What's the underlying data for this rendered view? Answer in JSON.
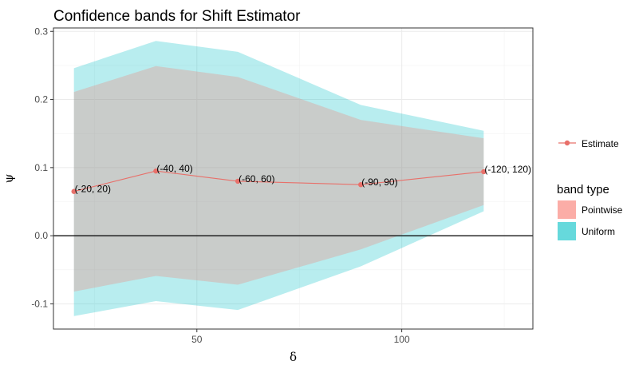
{
  "chart_data": {
    "type": "line",
    "title": "Confidence bands for Shift Estimator",
    "xlabel": "δ",
    "ylabel": "ψ",
    "xlim": [
      15,
      132
    ],
    "ylim": [
      -0.137,
      0.305
    ],
    "x_ticks": [
      50,
      100
    ],
    "y_ticks": [
      -0.1,
      0.0,
      0.1,
      0.2,
      0.3
    ],
    "y_tick_labels": [
      "-0.1",
      "0.0",
      "0.1",
      "0.2",
      "0.3"
    ],
    "grid": true,
    "reference_line_y": 0.0,
    "estimate": {
      "name": "Estimate",
      "color": "#e8706a",
      "x": [
        20,
        40,
        60,
        90,
        120
      ],
      "y": [
        0.065,
        0.095,
        0.08,
        0.075,
        0.094
      ],
      "labels": [
        "(-20, 20)",
        "(-40, 40)",
        "(-60, 60)",
        "(-90, 90)",
        "(-120, 120)"
      ]
    },
    "bands": [
      {
        "name": "Uniform",
        "color": "#00bfc4",
        "x": [
          20,
          40,
          60,
          90,
          120
        ],
        "lower": [
          -0.118,
          -0.096,
          -0.109,
          -0.045,
          0.036
        ],
        "upper": [
          0.246,
          0.286,
          0.27,
          0.192,
          0.154
        ]
      },
      {
        "name": "Pointwise",
        "color": "#f8766d",
        "x": [
          20,
          40,
          60,
          90,
          120
        ],
        "lower": [
          -0.082,
          -0.059,
          -0.072,
          -0.02,
          0.045
        ],
        "upper": [
          0.211,
          0.249,
          0.233,
          0.17,
          0.143
        ]
      }
    ],
    "legend": {
      "placement": "right",
      "estimate_label": "Estimate",
      "band_title": "band type",
      "band_items": [
        "Pointwise",
        "Uniform"
      ]
    }
  }
}
